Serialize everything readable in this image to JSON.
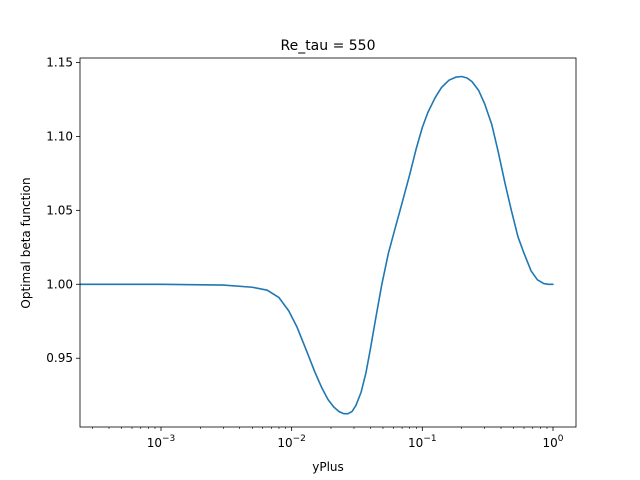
{
  "chart_data": {
    "type": "line",
    "title": "Re_tau = 550",
    "xlabel": "yPlus",
    "ylabel": "Optimal beta function",
    "xscale": "log",
    "xlim": [
      0.00024,
      1.5
    ],
    "ylim": [
      0.9035,
      1.153
    ],
    "grid": false,
    "legend": "none",
    "line_color": "#1f77b4",
    "x_ticks": [
      {
        "value": 0.001,
        "base": "10",
        "exp": "−3"
      },
      {
        "value": 0.01,
        "base": "10",
        "exp": "−2"
      },
      {
        "value": 0.1,
        "base": "10",
        "exp": "−1"
      },
      {
        "value": 1,
        "base": "10",
        "exp": "0"
      }
    ],
    "y_ticks": [
      {
        "value": 0.95,
        "label": "0.95"
      },
      {
        "value": 1.0,
        "label": "1.00"
      },
      {
        "value": 1.05,
        "label": "1.05"
      },
      {
        "value": 1.1,
        "label": "1.10"
      },
      {
        "value": 1.15,
        "label": "1.15"
      }
    ],
    "series": [
      {
        "x": [
          0.00024,
          0.001,
          0.003,
          0.005,
          0.0065,
          0.008,
          0.0095,
          0.011,
          0.013,
          0.015,
          0.017,
          0.019,
          0.021,
          0.023,
          0.025,
          0.027,
          0.029,
          0.031,
          0.034,
          0.037,
          0.04,
          0.044,
          0.049,
          0.055,
          0.062,
          0.07,
          0.08,
          0.09,
          0.1,
          0.11,
          0.125,
          0.14,
          0.16,
          0.18,
          0.2,
          0.22,
          0.24,
          0.27,
          0.3,
          0.34,
          0.38,
          0.43,
          0.48,
          0.54,
          0.6,
          0.68,
          0.76,
          0.85,
          0.92,
          1.0
        ],
        "y": [
          1.0,
          1.0,
          0.9995,
          0.998,
          0.996,
          0.991,
          0.982,
          0.971,
          0.955,
          0.941,
          0.93,
          0.922,
          0.917,
          0.914,
          0.9125,
          0.9125,
          0.914,
          0.918,
          0.927,
          0.94,
          0.956,
          0.977,
          1.0,
          1.021,
          1.038,
          1.055,
          1.074,
          1.092,
          1.106,
          1.116,
          1.126,
          1.133,
          1.138,
          1.14,
          1.1405,
          1.1395,
          1.137,
          1.131,
          1.122,
          1.108,
          1.09,
          1.068,
          1.05,
          1.032,
          1.021,
          1.009,
          1.003,
          1.0005,
          1.0,
          1.0
        ]
      }
    ]
  }
}
